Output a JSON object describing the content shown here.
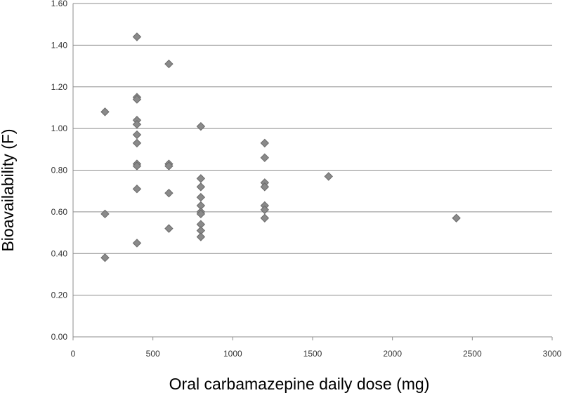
{
  "chart_data": {
    "type": "scatter",
    "title": "",
    "xlabel": "Oral carbamazepine daily dose (mg)",
    "ylabel": "Bioavailability (F)",
    "xlim": [
      0,
      3000
    ],
    "ylim": [
      0,
      1.6
    ],
    "x_ticks": [
      "0",
      "500",
      "1000",
      "1500",
      "2000",
      "2500",
      "3000"
    ],
    "y_ticks": [
      "0.00",
      "0.20",
      "0.40",
      "0.60",
      "0.80",
      "1.00",
      "1.20",
      "1.40",
      "1.60"
    ],
    "grid": "horizontal",
    "legend": "none",
    "marker": "diamond",
    "marker_color": "#8a8a8a",
    "series": [
      {
        "name": "Bioavailability",
        "points": [
          {
            "x": 200,
            "y": 1.08
          },
          {
            "x": 200,
            "y": 0.59
          },
          {
            "x": 200,
            "y": 0.38
          },
          {
            "x": 400,
            "y": 1.44
          },
          {
            "x": 400,
            "y": 1.15
          },
          {
            "x": 400,
            "y": 1.14
          },
          {
            "x": 400,
            "y": 1.04
          },
          {
            "x": 400,
            "y": 1.02
          },
          {
            "x": 400,
            "y": 0.97
          },
          {
            "x": 400,
            "y": 0.93
          },
          {
            "x": 400,
            "y": 0.83
          },
          {
            "x": 400,
            "y": 0.82
          },
          {
            "x": 400,
            "y": 0.71
          },
          {
            "x": 400,
            "y": 0.45
          },
          {
            "x": 600,
            "y": 1.31
          },
          {
            "x": 600,
            "y": 0.83
          },
          {
            "x": 600,
            "y": 0.82
          },
          {
            "x": 600,
            "y": 0.69
          },
          {
            "x": 600,
            "y": 0.52
          },
          {
            "x": 800,
            "y": 1.01
          },
          {
            "x": 800,
            "y": 0.76
          },
          {
            "x": 800,
            "y": 0.72
          },
          {
            "x": 800,
            "y": 0.67
          },
          {
            "x": 800,
            "y": 0.63
          },
          {
            "x": 800,
            "y": 0.6
          },
          {
            "x": 800,
            "y": 0.59
          },
          {
            "x": 800,
            "y": 0.54
          },
          {
            "x": 800,
            "y": 0.51
          },
          {
            "x": 800,
            "y": 0.48
          },
          {
            "x": 1200,
            "y": 0.93
          },
          {
            "x": 1200,
            "y": 0.86
          },
          {
            "x": 1200,
            "y": 0.74
          },
          {
            "x": 1200,
            "y": 0.72
          },
          {
            "x": 1200,
            "y": 0.63
          },
          {
            "x": 1200,
            "y": 0.61
          },
          {
            "x": 1200,
            "y": 0.57
          },
          {
            "x": 1600,
            "y": 0.77
          },
          {
            "x": 2400,
            "y": 0.57
          }
        ]
      }
    ]
  }
}
